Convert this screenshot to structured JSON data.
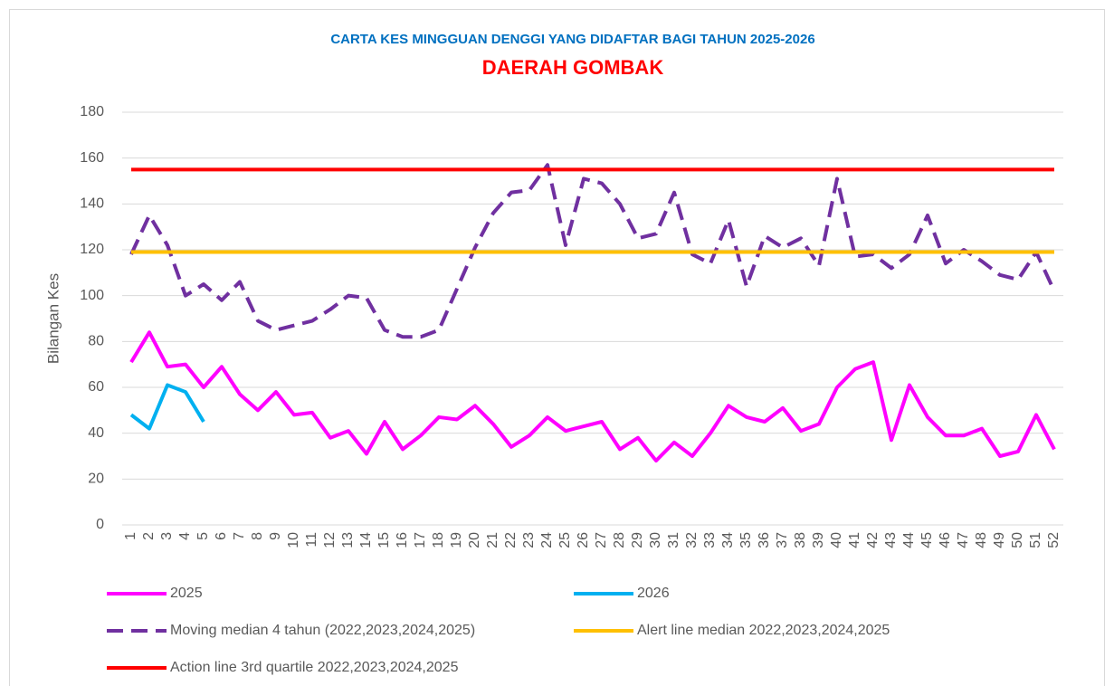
{
  "chart_data": {
    "type": "line",
    "title": "CARTA KES MINGGUAN DENGGI YANG DIDAFTAR BAGI TAHUN 2025-2026",
    "subtitle": "DAERAH GOMBAK",
    "y_label": "Bilangan Kes",
    "categories": [
      1,
      2,
      3,
      4,
      5,
      6,
      7,
      8,
      9,
      10,
      11,
      12,
      13,
      14,
      15,
      16,
      17,
      18,
      19,
      20,
      21,
      22,
      23,
      24,
      25,
      26,
      27,
      28,
      29,
      30,
      31,
      32,
      33,
      34,
      35,
      36,
      37,
      38,
      39,
      40,
      41,
      42,
      43,
      44,
      45,
      46,
      47,
      48,
      49,
      50,
      51,
      52
    ],
    "ylim": [
      0,
      180
    ],
    "yticks": [
      0,
      20,
      40,
      60,
      80,
      100,
      120,
      140,
      160,
      180
    ],
    "grid": true,
    "series": [
      {
        "name": "2025",
        "color": "#ff00ff",
        "values": [
          71,
          84,
          69,
          70,
          60,
          69,
          57,
          50,
          58,
          48,
          49,
          38,
          41,
          31,
          45,
          33,
          39,
          47,
          46,
          52,
          44,
          34,
          39,
          47,
          41,
          43,
          45,
          33,
          38,
          28,
          36,
          30,
          40,
          52,
          47,
          45,
          51,
          41,
          44,
          60,
          68,
          71,
          37,
          61,
          47,
          39,
          39,
          42,
          30,
          32,
          48,
          33
        ]
      },
      {
        "name": "2026",
        "color": "#00b0f0",
        "values": [
          48,
          42,
          61,
          58,
          45,
          null,
          null,
          null,
          null,
          null,
          null,
          null,
          null,
          null,
          null,
          null,
          null,
          null,
          null,
          null,
          null,
          null,
          null,
          null,
          null,
          null,
          null,
          null,
          null,
          null,
          null,
          null,
          null,
          null,
          null,
          null,
          null,
          null,
          null,
          null,
          null,
          null,
          null,
          null,
          null,
          null,
          null,
          null,
          null,
          null,
          null,
          null
        ]
      },
      {
        "name": "Moving median 4 tahun (2022,2023,2024,2025)",
        "color": "#7030a0",
        "dashed": true,
        "values": [
          118,
          135,
          122,
          100,
          105,
          98,
          106,
          89,
          85,
          87,
          89,
          94,
          100,
          99,
          85,
          82,
          82,
          85,
          103,
          121,
          136,
          145,
          146,
          157,
          122,
          151,
          149,
          140,
          125,
          127,
          145,
          118,
          114,
          133,
          104,
          126,
          121,
          125,
          113,
          151,
          117,
          118,
          112,
          118,
          135,
          114,
          120,
          115,
          109,
          107,
          119,
          102
        ]
      },
      {
        "name": "Alert line median 2022,2023,2024,2025",
        "color": "#ffc000",
        "values": [
          119,
          119,
          119,
          119,
          119,
          119,
          119,
          119,
          119,
          119,
          119,
          119,
          119,
          119,
          119,
          119,
          119,
          119,
          119,
          119,
          119,
          119,
          119,
          119,
          119,
          119,
          119,
          119,
          119,
          119,
          119,
          119,
          119,
          119,
          119,
          119,
          119,
          119,
          119,
          119,
          119,
          119,
          119,
          119,
          119,
          119,
          119,
          119,
          119,
          119,
          119,
          119
        ]
      },
      {
        "name": "Action line 3rd quartile 2022,2023,2024,2025",
        "color": "#ff0000",
        "values": [
          155,
          155,
          155,
          155,
          155,
          155,
          155,
          155,
          155,
          155,
          155,
          155,
          155,
          155,
          155,
          155,
          155,
          155,
          155,
          155,
          155,
          155,
          155,
          155,
          155,
          155,
          155,
          155,
          155,
          155,
          155,
          155,
          155,
          155,
          155,
          155,
          155,
          155,
          155,
          155,
          155,
          155,
          155,
          155,
          155,
          155,
          155,
          155,
          155,
          155,
          155,
          155
        ]
      }
    ]
  }
}
